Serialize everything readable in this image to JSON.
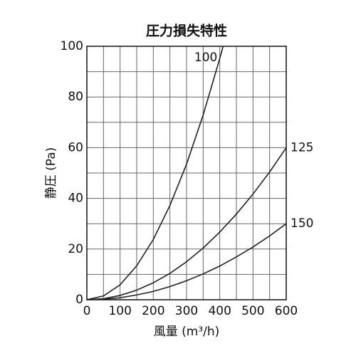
{
  "chart_data": {
    "type": "line",
    "title": "圧力損失特性",
    "x_label": "風量 (m³/h)",
    "y_label": "静圧 (Pa)",
    "xlim": [
      0,
      600
    ],
    "xticks": [
      0,
      100,
      200,
      300,
      400,
      500,
      600
    ],
    "ylim": [
      0,
      100
    ],
    "yticks": [
      0,
      20,
      40,
      60,
      80,
      100
    ],
    "grid": true,
    "series": [
      {
        "name": "100",
        "color": "#222222",
        "x": [
          0,
          50,
          100,
          150,
          200,
          250,
          300,
          350,
          400,
          410
        ],
        "values": [
          0,
          1.5,
          5.9,
          13.4,
          23.8,
          37.2,
          53.5,
          72.9,
          95.2,
          100
        ]
      },
      {
        "name": "125",
        "color": "#222222",
        "x": [
          0,
          50,
          100,
          150,
          200,
          250,
          300,
          350,
          400,
          450,
          500,
          550,
          600
        ],
        "values": [
          0,
          0.4,
          1.7,
          3.8,
          6.7,
          10.4,
          15,
          20.4,
          26.7,
          33.8,
          41.7,
          50.4,
          60
        ]
      },
      {
        "name": "150",
        "color": "#222222",
        "x": [
          0,
          50,
          100,
          150,
          200,
          250,
          300,
          350,
          400,
          450,
          500,
          550,
          600
        ],
        "values": [
          0,
          0.2,
          0.8,
          1.9,
          3.3,
          5.2,
          7.5,
          10.2,
          13.3,
          16.9,
          20.8,
          25.2,
          30
        ]
      }
    ]
  }
}
